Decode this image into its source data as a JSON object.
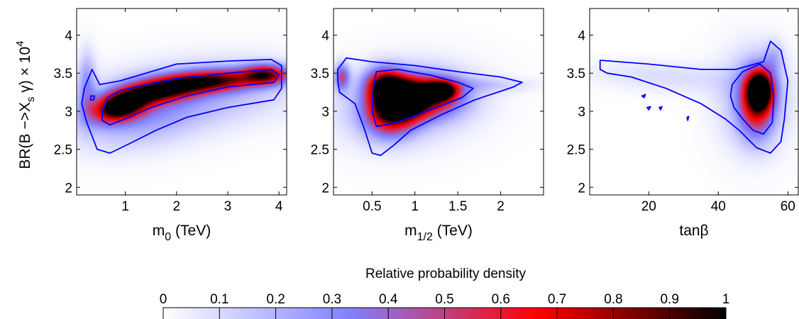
{
  "chart_data": {
    "type": "heatmap",
    "ylabel": "BR(B −>X_s γ) × 10^4",
    "panels": [
      {
        "id": "m0",
        "xlabel_main": "m",
        "xlabel_sub": "0",
        "xlabel_unit": " (TeV)",
        "xlim": [
          0.05,
          4.15
        ],
        "ylim": [
          1.9,
          4.35
        ],
        "xticks": [
          1,
          2,
          3,
          4
        ],
        "xtick_labels": [
          "1",
          "2",
          "3",
          "4"
        ],
        "yticks": [
          2,
          2.5,
          3,
          3.5,
          4
        ],
        "ytick_labels": [
          "2",
          "2.5",
          "3",
          "3.5",
          "4"
        ],
        "density_blobs": [
          {
            "x": 0.9,
            "y": 3.06,
            "sx": 0.35,
            "sy": 0.12,
            "rot": 18,
            "w": 1.0
          },
          {
            "x": 1.7,
            "y": 3.28,
            "sx": 0.55,
            "sy": 0.11,
            "rot": 10,
            "w": 0.85
          },
          {
            "x": 2.8,
            "y": 3.4,
            "sx": 0.6,
            "sy": 0.1,
            "rot": 4,
            "w": 0.7
          },
          {
            "x": 3.75,
            "y": 3.48,
            "sx": 0.3,
            "sy": 0.09,
            "rot": 0,
            "w": 0.7
          },
          {
            "x": 1.2,
            "y": 2.95,
            "sx": 0.9,
            "sy": 0.3,
            "rot": 10,
            "w": 0.22
          },
          {
            "x": 2.6,
            "y": 3.25,
            "sx": 1.3,
            "sy": 0.3,
            "rot": 6,
            "w": 0.18
          },
          {
            "x": 0.25,
            "y": 3.35,
            "sx": 0.12,
            "sy": 0.3,
            "rot": 0,
            "w": 0.25
          }
        ],
        "contours": [
          {
            "level": "outer",
            "points": [
              [
                0.2,
                3.3
              ],
              [
                0.35,
                3.55
              ],
              [
                0.5,
                3.35
              ],
              [
                0.9,
                3.4
              ],
              [
                1.5,
                3.52
              ],
              [
                2.0,
                3.62
              ],
              [
                3.0,
                3.66
              ],
              [
                3.85,
                3.68
              ],
              [
                4.05,
                3.6
              ],
              [
                4.05,
                3.3
              ],
              [
                3.9,
                3.15
              ],
              [
                3.0,
                3.05
              ],
              [
                2.2,
                2.92
              ],
              [
                1.6,
                2.75
              ],
              [
                1.1,
                2.58
              ],
              [
                0.7,
                2.45
              ],
              [
                0.45,
                2.5
              ],
              [
                0.25,
                2.85
              ],
              [
                0.15,
                3.1
              ]
            ]
          },
          {
            "level": "inner",
            "points": [
              [
                0.55,
                3.0
              ],
              [
                0.65,
                3.18
              ],
              [
                0.9,
                3.27
              ],
              [
                1.4,
                3.35
              ],
              [
                2.0,
                3.43
              ],
              [
                3.0,
                3.5
              ],
              [
                3.85,
                3.55
              ],
              [
                4.0,
                3.48
              ],
              [
                3.9,
                3.38
              ],
              [
                3.0,
                3.32
              ],
              [
                2.2,
                3.2
              ],
              [
                1.5,
                3.05
              ],
              [
                1.0,
                2.9
              ],
              [
                0.7,
                2.82
              ],
              [
                0.55,
                2.88
              ]
            ]
          },
          {
            "level": "small",
            "points": [
              [
                0.33,
                3.2
              ],
              [
                0.4,
                3.2
              ],
              [
                0.38,
                3.15
              ],
              [
                0.32,
                3.15
              ]
            ]
          }
        ]
      },
      {
        "id": "m12",
        "xlabel_main": "m",
        "xlabel_sub": "1/2",
        "xlabel_unit": " (TeV)",
        "xlim": [
          0.05,
          2.5
        ],
        "ylim": [
          1.9,
          4.35
        ],
        "xticks": [
          0.5,
          1,
          1.5,
          2
        ],
        "xtick_labels": [
          "0.5",
          "1",
          "1.5",
          "2"
        ],
        "yticks": [
          2,
          2.5,
          3,
          3.5,
          4
        ],
        "ytick_labels": [
          "2",
          "2.5",
          "3",
          "3.5",
          "4"
        ],
        "density_blobs": [
          {
            "x": 0.85,
            "y": 3.15,
            "sx": 0.18,
            "sy": 0.16,
            "rot": 0,
            "w": 1.0
          },
          {
            "x": 1.3,
            "y": 3.27,
            "sx": 0.12,
            "sy": 0.08,
            "rot": 0,
            "w": 0.95
          },
          {
            "x": 0.65,
            "y": 3.35,
            "sx": 0.15,
            "sy": 0.15,
            "rot": 0,
            "w": 0.75
          },
          {
            "x": 1.1,
            "y": 3.2,
            "sx": 0.3,
            "sy": 0.18,
            "rot": 0,
            "w": 0.7
          },
          {
            "x": 0.7,
            "y": 2.95,
            "sx": 0.2,
            "sy": 0.2,
            "rot": 0,
            "w": 0.6
          },
          {
            "x": 0.9,
            "y": 3.1,
            "sx": 0.55,
            "sy": 0.35,
            "rot": 8,
            "w": 0.22
          },
          {
            "x": 0.15,
            "y": 3.45,
            "sx": 0.06,
            "sy": 0.12,
            "rot": 0,
            "w": 0.45
          },
          {
            "x": 1.8,
            "y": 3.35,
            "sx": 0.4,
            "sy": 0.07,
            "rot": 0,
            "w": 0.12
          }
        ],
        "contours": [
          {
            "level": "outer",
            "points": [
              [
                0.1,
                3.55
              ],
              [
                0.2,
                3.7
              ],
              [
                0.5,
                3.65
              ],
              [
                1.0,
                3.6
              ],
              [
                1.5,
                3.52
              ],
              [
                2.0,
                3.45
              ],
              [
                2.25,
                3.38
              ],
              [
                2.15,
                3.32
              ],
              [
                1.7,
                3.15
              ],
              [
                1.3,
                2.95
              ],
              [
                0.95,
                2.75
              ],
              [
                0.75,
                2.55
              ],
              [
                0.6,
                2.42
              ],
              [
                0.5,
                2.45
              ],
              [
                0.4,
                2.8
              ],
              [
                0.3,
                3.1
              ],
              [
                0.12,
                3.25
              ],
              [
                0.1,
                3.4
              ]
            ]
          },
          {
            "level": "inner",
            "points": [
              [
                0.52,
                3.35
              ],
              [
                0.55,
                3.52
              ],
              [
                0.8,
                3.55
              ],
              [
                1.2,
                3.47
              ],
              [
                1.5,
                3.38
              ],
              [
                1.68,
                3.3
              ],
              [
                1.55,
                3.18
              ],
              [
                1.25,
                3.05
              ],
              [
                0.95,
                2.92
              ],
              [
                0.7,
                2.83
              ],
              [
                0.55,
                2.8
              ],
              [
                0.5,
                3.0
              ]
            ]
          }
        ]
      },
      {
        "id": "tanb",
        "xlabel_main": "tanβ",
        "xlabel_sub": "",
        "xlabel_unit": "",
        "xlim": [
          3,
          63
        ],
        "ylim": [
          1.9,
          4.35
        ],
        "xticks": [
          20,
          40,
          60
        ],
        "xtick_labels": [
          "20",
          "40",
          "60"
        ],
        "yticks": [
          2,
          2.5,
          3,
          3.5,
          4
        ],
        "ytick_labels": [
          "2",
          "2.5",
          "3",
          "3.5",
          "4"
        ],
        "density_blobs": [
          {
            "x": 52,
            "y": 3.28,
            "sx": 2.5,
            "sy": 0.17,
            "rot": 0,
            "w": 1.0
          },
          {
            "x": 51,
            "y": 3.1,
            "sx": 3.5,
            "sy": 0.3,
            "rot": 0,
            "w": 0.55
          },
          {
            "x": 50,
            "y": 3.15,
            "sx": 7,
            "sy": 0.45,
            "rot": 0,
            "w": 0.2
          },
          {
            "x": 25,
            "y": 3.45,
            "sx": 16,
            "sy": 0.14,
            "rot": -4,
            "w": 0.09
          },
          {
            "x": 56,
            "y": 3.7,
            "sx": 2,
            "sy": 0.15,
            "rot": 0,
            "w": 0.15
          }
        ],
        "contours": [
          {
            "level": "outer",
            "points": [
              [
                6,
                3.55
              ],
              [
                6,
                3.67
              ],
              [
                20,
                3.62
              ],
              [
                35,
                3.55
              ],
              [
                45,
                3.55
              ],
              [
                53,
                3.65
              ],
              [
                55,
                3.92
              ],
              [
                58,
                3.8
              ],
              [
                60,
                3.4
              ],
              [
                59,
                2.9
              ],
              [
                58,
                2.6
              ],
              [
                55,
                2.45
              ],
              [
                51,
                2.52
              ],
              [
                46,
                2.75
              ],
              [
                42,
                2.9
              ],
              [
                35,
                3.1
              ],
              [
                25,
                3.3
              ],
              [
                15,
                3.45
              ],
              [
                8,
                3.5
              ]
            ]
          },
          {
            "level": "inner",
            "points": [
              [
                44,
                3.35
              ],
              [
                47,
                3.52
              ],
              [
                52,
                3.62
              ],
              [
                55,
                3.5
              ],
              [
                56,
                3.2
              ],
              [
                55.5,
                2.85
              ],
              [
                53,
                2.7
              ],
              [
                50,
                2.75
              ],
              [
                47,
                2.9
              ],
              [
                44.5,
                3.05
              ],
              [
                43.5,
                3.2
              ]
            ]
          },
          {
            "level": "small",
            "points": [
              [
                18,
                3.2
              ],
              [
                19,
                3.22
              ],
              [
                18.7,
                3.18
              ]
            ]
          },
          {
            "level": "small",
            "points": [
              [
                19.5,
                3.05
              ],
              [
                20.5,
                3.06
              ],
              [
                20,
                3.02
              ]
            ]
          },
          {
            "level": "small",
            "points": [
              [
                23,
                3.05
              ],
              [
                23.8,
                3.06
              ],
              [
                23.4,
                3.02
              ]
            ]
          },
          {
            "level": "small",
            "points": [
              [
                31,
                2.92
              ],
              [
                31.5,
                2.93
              ],
              [
                31.2,
                2.88
              ]
            ]
          }
        ]
      }
    ],
    "colorbar": {
      "title": "Relative probability density",
      "range": [
        0,
        1
      ],
      "ticks": [
        0,
        0.1,
        0.2,
        0.3,
        0.4,
        0.5,
        0.6,
        0.7,
        0.8,
        0.9,
        1
      ],
      "tick_labels": [
        "0",
        "0.1",
        "0.2",
        "0.3",
        "0.4",
        "0.5",
        "0.6",
        "0.7",
        "0.8",
        "0.9",
        "1"
      ],
      "colormap": [
        "#ffffff",
        "#8080ff",
        "#ff0000",
        "#000000"
      ]
    },
    "contour_color": "#0000ff",
    "grid": false
  }
}
